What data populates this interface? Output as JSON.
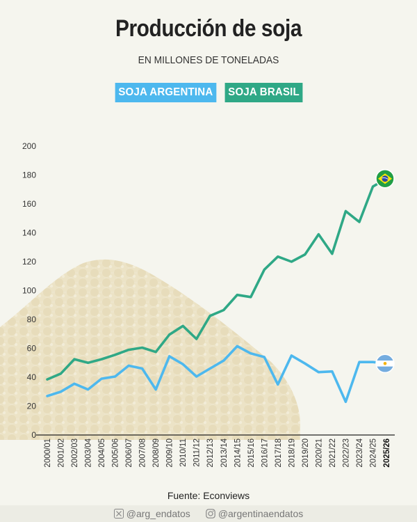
{
  "header": {
    "title": "Producción de soja",
    "subtitle": "EN MILLONES DE TONELADAS"
  },
  "footer": {
    "source": "Fuente: Econviews",
    "twitter_handle": "@arg_endatos",
    "instagram_handle": "@argentinaendatos"
  },
  "colors": {
    "argentina": "#4db8ee",
    "brasil": "#2fa886",
    "background": "#f5f5ee"
  },
  "chart_data": {
    "type": "line",
    "title": "Producción de soja",
    "subtitle": "EN MILLONES DE TONELADAS",
    "xlabel": "",
    "ylabel": "",
    "ylim": [
      0,
      200
    ],
    "yticks": [
      0,
      20,
      40,
      60,
      80,
      100,
      120,
      140,
      160,
      180,
      200
    ],
    "grid": false,
    "legend_position": "top",
    "categories": [
      "2000/01",
      "2001/02",
      "2002/03",
      "2003/04",
      "2004/05",
      "2005/06",
      "2006/07",
      "2007/08",
      "2008/09",
      "2009/10",
      "2010/11",
      "2011/12",
      "2012/13",
      "2013/14",
      "2014/15",
      "2015/16",
      "2016/17",
      "2017/18",
      "2018/19",
      "2019/20",
      "2020/21",
      "2021/22",
      "2022/23",
      "2023/24",
      "2024/25",
      "2025/26"
    ],
    "highlight_category": "2025/26",
    "series": [
      {
        "name": "SOJA ARGENTINA",
        "color": "#4db8ee",
        "marker_icon": "argentina-flag-icon",
        "values": [
          27.0,
          30.0,
          35.5,
          31.5,
          39.0,
          40.5,
          48.0,
          46.0,
          31.5,
          54.5,
          49.0,
          40.5,
          46.0,
          51.5,
          61.5,
          56.5,
          54.0,
          35.0,
          55.0,
          49.5,
          43.5,
          44.0,
          23.0,
          50.5,
          50.5,
          49.5
        ]
      },
      {
        "name": "SOJA BRASIL",
        "color": "#2fa886",
        "marker_icon": "brazil-flag-icon",
        "values": [
          38.5,
          42.5,
          52.5,
          50.0,
          52.5,
          55.5,
          59.0,
          60.5,
          57.5,
          69.5,
          75.5,
          66.5,
          82.5,
          86.5,
          97.0,
          95.5,
          114.5,
          123.5,
          120.0,
          125.0,
          139.0,
          125.5,
          155.0,
          147.5,
          172.0,
          177.5
        ]
      }
    ]
  }
}
